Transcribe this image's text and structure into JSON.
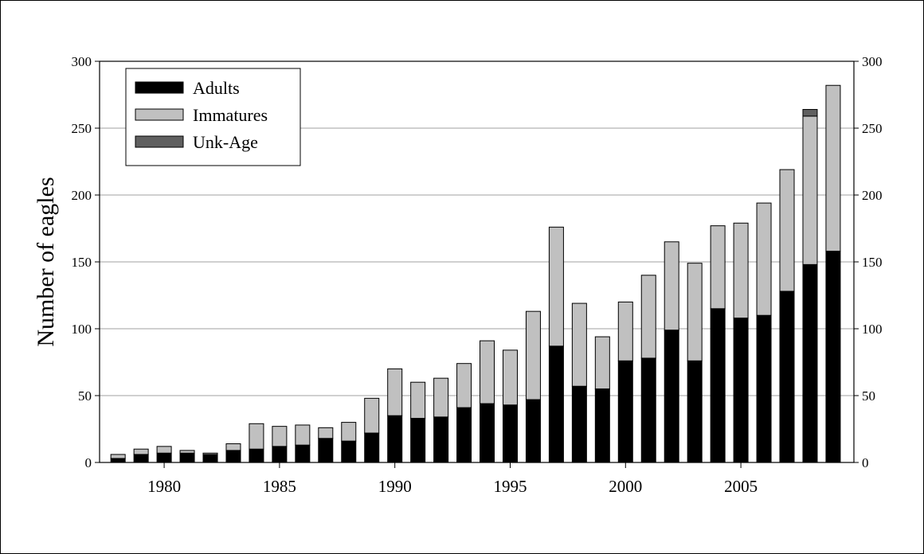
{
  "chart_data": {
    "type": "bar",
    "stacked": true,
    "title": "",
    "xlabel": "",
    "ylabel": "Number of eagles",
    "xlim": [
      1977.2,
      2009.9
    ],
    "ylim": [
      0,
      300
    ],
    "x_ticks": [
      1980,
      1985,
      1990,
      1995,
      2000,
      2005
    ],
    "y_ticks": [
      0,
      50,
      100,
      150,
      200,
      250,
      300
    ],
    "grid": "horizontal",
    "legend_position": "top-left",
    "colors": {
      "Adults": "#000000",
      "Immatures": "#c0c0c0",
      "Unk-Age": "#606060"
    },
    "x": [
      1978,
      1979,
      1980,
      1981,
      1982,
      1983,
      1984,
      1985,
      1986,
      1987,
      1988,
      1989,
      1990,
      1991,
      1992,
      1993,
      1994,
      1995,
      1996,
      1997,
      1998,
      1999,
      2000,
      2001,
      2002,
      2003,
      2004,
      2005,
      2006,
      2007,
      2008,
      2009
    ],
    "series": [
      {
        "name": "Adults",
        "values": [
          3,
          6,
          7,
          7,
          6,
          9,
          10,
          12,
          13,
          18,
          16,
          22,
          35,
          33,
          34,
          41,
          44,
          43,
          47,
          87,
          57,
          55,
          76,
          78,
          99,
          76,
          115,
          108,
          110,
          128,
          148,
          158
        ]
      },
      {
        "name": "Immatures",
        "values": [
          3,
          4,
          5,
          2,
          1,
          5,
          19,
          15,
          15,
          8,
          14,
          26,
          35,
          27,
          29,
          33,
          47,
          41,
          66,
          89,
          62,
          39,
          44,
          62,
          66,
          73,
          62,
          71,
          84,
          91,
          111,
          124
        ]
      },
      {
        "name": "Unk-Age",
        "values": [
          0,
          0,
          0,
          0,
          0,
          0,
          0,
          0,
          0,
          0,
          0,
          0,
          0,
          0,
          0,
          0,
          0,
          0,
          0,
          0,
          0,
          0,
          0,
          0,
          0,
          0,
          0,
          0,
          0,
          0,
          5,
          0
        ]
      }
    ]
  }
}
